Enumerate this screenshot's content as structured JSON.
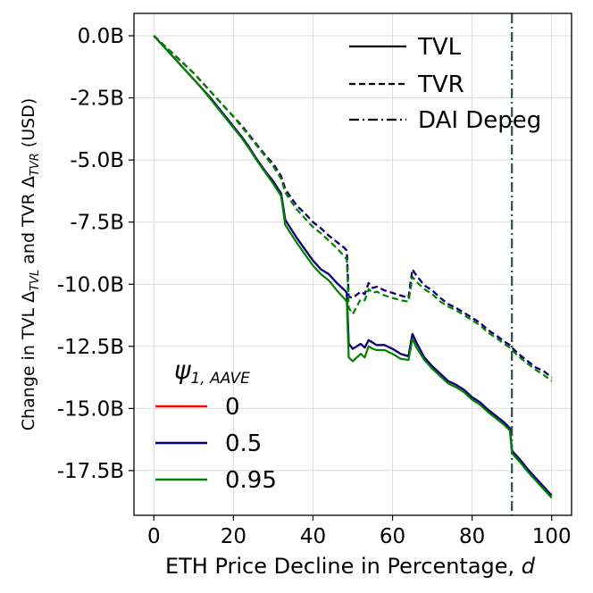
{
  "chart_data": {
    "type": "line",
    "xlabel_text": "ETH Price Decline in Percentage, ",
    "xlabel_var": "d",
    "ylabel_text": "Change in TVL Δ_TVL and TVR Δ_TVR (USD)",
    "ylabel_part1": "Change in TVL Δ",
    "ylabel_sub1": "TVL",
    "ylabel_part2": " and TVR Δ",
    "ylabel_sub2": "TVR",
    "ylabel_part3": " (USD)",
    "xlim": [
      -5,
      105
    ],
    "ylim": [
      -19.3,
      0.9
    ],
    "xticks": [
      0,
      20,
      40,
      60,
      80,
      100
    ],
    "xtick_labels": [
      "0",
      "20",
      "40",
      "60",
      "80",
      "100"
    ],
    "yticks": [
      0,
      -2.5,
      -5,
      -7.5,
      -10,
      -12.5,
      -15,
      -17.5
    ],
    "ytick_labels": [
      "0.0B",
      "-2.5B",
      "-5.0B",
      "-7.5B",
      "-10.0B",
      "-12.5B",
      "-15.0B",
      "-17.5B"
    ],
    "grid": true,
    "depeg_x": 90,
    "style_legend": {
      "position": "top-right",
      "entries": [
        {
          "label": "TVL",
          "style": "solid"
        },
        {
          "label": "TVR",
          "style": "dashed"
        },
        {
          "label": "DAI Depeg",
          "style": "dashdot"
        }
      ]
    },
    "psi_legend": {
      "position": "bottom-left",
      "title": "ψ",
      "title_sub": "1, AAVE",
      "entries": [
        {
          "label": "0",
          "color": "#ff0000"
        },
        {
          "label": "0.5",
          "color": "#000080"
        },
        {
          "label": "0.95",
          "color": "#008000"
        }
      ]
    },
    "depeg_color": "#2f4f4f",
    "x": [
      0,
      2,
      4,
      6,
      8,
      10,
      12,
      14,
      16,
      18,
      20,
      22,
      24,
      26,
      28,
      30,
      32,
      33,
      34,
      36,
      38,
      40,
      42,
      44,
      46,
      48,
      48.5,
      49,
      50,
      52,
      53,
      54,
      55,
      56,
      58,
      60,
      62,
      64,
      65,
      66,
      68,
      70,
      72,
      74,
      76,
      78,
      80,
      82,
      84,
      86,
      88,
      89.5,
      90,
      92,
      94,
      96,
      98,
      100
    ],
    "series": [
      {
        "name": "TVL",
        "psi": "0",
        "color": "#ff0000",
        "style": "solid",
        "values": [
          0,
          -0.35,
          -0.7,
          -1.05,
          -1.4,
          -1.75,
          -2.1,
          -2.45,
          -2.85,
          -3.25,
          -3.65,
          -4.05,
          -4.5,
          -5,
          -5.45,
          -5.85,
          -6.35,
          -7.4,
          -7.65,
          -8.15,
          -8.6,
          -9.05,
          -9.4,
          -9.6,
          -9.95,
          -10.25,
          -10.35,
          -12.4,
          -12.6,
          -12.4,
          -12.55,
          -12.25,
          -12.35,
          -12.45,
          -12.45,
          -12.6,
          -12.8,
          -12.9,
          -12,
          -12.35,
          -12.95,
          -13.3,
          -13.6,
          -13.9,
          -14.05,
          -14.25,
          -14.55,
          -14.75,
          -15.05,
          -15.3,
          -15.55,
          -15.8,
          -16.7,
          -17.05,
          -17.45,
          -17.8,
          -18.15,
          -18.5
        ]
      },
      {
        "name": "TVR",
        "psi": "0",
        "color": "#ff0000",
        "style": "dashed",
        "values": [
          0,
          -0.3,
          -0.6,
          -0.9,
          -1.2,
          -1.5,
          -1.85,
          -2.2,
          -2.55,
          -2.9,
          -3.25,
          -3.6,
          -4,
          -4.4,
          -4.8,
          -5.15,
          -5.65,
          -6.15,
          -6.4,
          -6.85,
          -7.15,
          -7.5,
          -7.75,
          -8.05,
          -8.3,
          -8.55,
          -8.65,
          -10.5,
          -10.55,
          -10.3,
          -10.4,
          -9.95,
          -10.15,
          -10.1,
          -10.25,
          -10.35,
          -10.45,
          -10.55,
          -9.4,
          -9.65,
          -10.05,
          -10.25,
          -10.55,
          -10.8,
          -10.95,
          -11.15,
          -11.35,
          -11.55,
          -11.85,
          -12.05,
          -12.3,
          -12.45,
          -12.55,
          -12.85,
          -13.1,
          -13.35,
          -13.5,
          -13.75
        ]
      },
      {
        "name": "TVL",
        "psi": "0.5",
        "color": "#000080",
        "style": "solid",
        "values": [
          0,
          -0.35,
          -0.7,
          -1.05,
          -1.4,
          -1.75,
          -2.1,
          -2.45,
          -2.85,
          -3.25,
          -3.65,
          -4.05,
          -4.5,
          -5,
          -5.45,
          -5.85,
          -6.35,
          -7.4,
          -7.65,
          -8.15,
          -8.6,
          -9.05,
          -9.4,
          -9.6,
          -9.95,
          -10.25,
          -10.35,
          -12.4,
          -12.6,
          -12.4,
          -12.55,
          -12.25,
          -12.35,
          -12.45,
          -12.45,
          -12.6,
          -12.8,
          -12.9,
          -12,
          -12.35,
          -12.95,
          -13.3,
          -13.6,
          -13.9,
          -14.05,
          -14.25,
          -14.55,
          -14.75,
          -15.05,
          -15.3,
          -15.55,
          -15.8,
          -16.7,
          -17.05,
          -17.45,
          -17.8,
          -18.15,
          -18.5
        ]
      },
      {
        "name": "TVR",
        "psi": "0.5",
        "color": "#000080",
        "style": "dashed",
        "values": [
          0,
          -0.3,
          -0.6,
          -0.9,
          -1.2,
          -1.5,
          -1.85,
          -2.2,
          -2.55,
          -2.9,
          -3.25,
          -3.6,
          -4,
          -4.4,
          -4.8,
          -5.15,
          -5.65,
          -6.15,
          -6.4,
          -6.85,
          -7.15,
          -7.5,
          -7.75,
          -8.05,
          -8.3,
          -8.55,
          -8.65,
          -10.5,
          -10.55,
          -10.3,
          -10.4,
          -9.95,
          -10.15,
          -10.1,
          -10.25,
          -10.35,
          -10.45,
          -10.55,
          -9.4,
          -9.65,
          -10.05,
          -10.25,
          -10.55,
          -10.8,
          -10.95,
          -11.15,
          -11.35,
          -11.55,
          -11.85,
          -12.05,
          -12.3,
          -12.45,
          -12.55,
          -12.85,
          -13.1,
          -13.35,
          -13.5,
          -13.75
        ]
      },
      {
        "name": "TVL",
        "psi": "0.95",
        "color": "#008000",
        "style": "solid",
        "values": [
          0,
          -0.35,
          -0.7,
          -1.05,
          -1.4,
          -1.75,
          -2.1,
          -2.5,
          -2.9,
          -3.3,
          -3.7,
          -4.1,
          -4.55,
          -5.05,
          -5.5,
          -5.95,
          -6.45,
          -7.6,
          -7.85,
          -8.35,
          -8.8,
          -9.25,
          -9.6,
          -9.85,
          -10.25,
          -10.6,
          -10.7,
          -12.95,
          -13.1,
          -12.8,
          -12.95,
          -12.5,
          -12.6,
          -12.65,
          -12.65,
          -12.8,
          -13,
          -13.05,
          -12.2,
          -12.55,
          -13.05,
          -13.4,
          -13.7,
          -14,
          -14.15,
          -14.35,
          -14.65,
          -14.85,
          -15.15,
          -15.4,
          -15.65,
          -15.9,
          -16.8,
          -17.15,
          -17.55,
          -17.9,
          -18.25,
          -18.6
        ]
      },
      {
        "name": "TVR",
        "psi": "0.95",
        "color": "#008000",
        "style": "dashed",
        "values": [
          0,
          -0.3,
          -0.6,
          -0.9,
          -1.2,
          -1.5,
          -1.85,
          -2.2,
          -2.55,
          -2.9,
          -3.25,
          -3.65,
          -4.05,
          -4.45,
          -4.85,
          -5.25,
          -5.75,
          -6.3,
          -6.55,
          -7,
          -7.35,
          -7.7,
          -7.95,
          -8.25,
          -8.55,
          -8.9,
          -9,
          -10.95,
          -11.2,
          -10.6,
          -10.65,
          -10.2,
          -10.35,
          -10.3,
          -10.45,
          -10.55,
          -10.65,
          -10.7,
          -9.7,
          -9.9,
          -10.2,
          -10.4,
          -10.7,
          -10.9,
          -11.05,
          -11.25,
          -11.45,
          -11.65,
          -11.95,
          -12.15,
          -12.4,
          -12.55,
          -12.65,
          -12.95,
          -13.2,
          -13.45,
          -13.65,
          -13.9
        ]
      }
    ]
  }
}
